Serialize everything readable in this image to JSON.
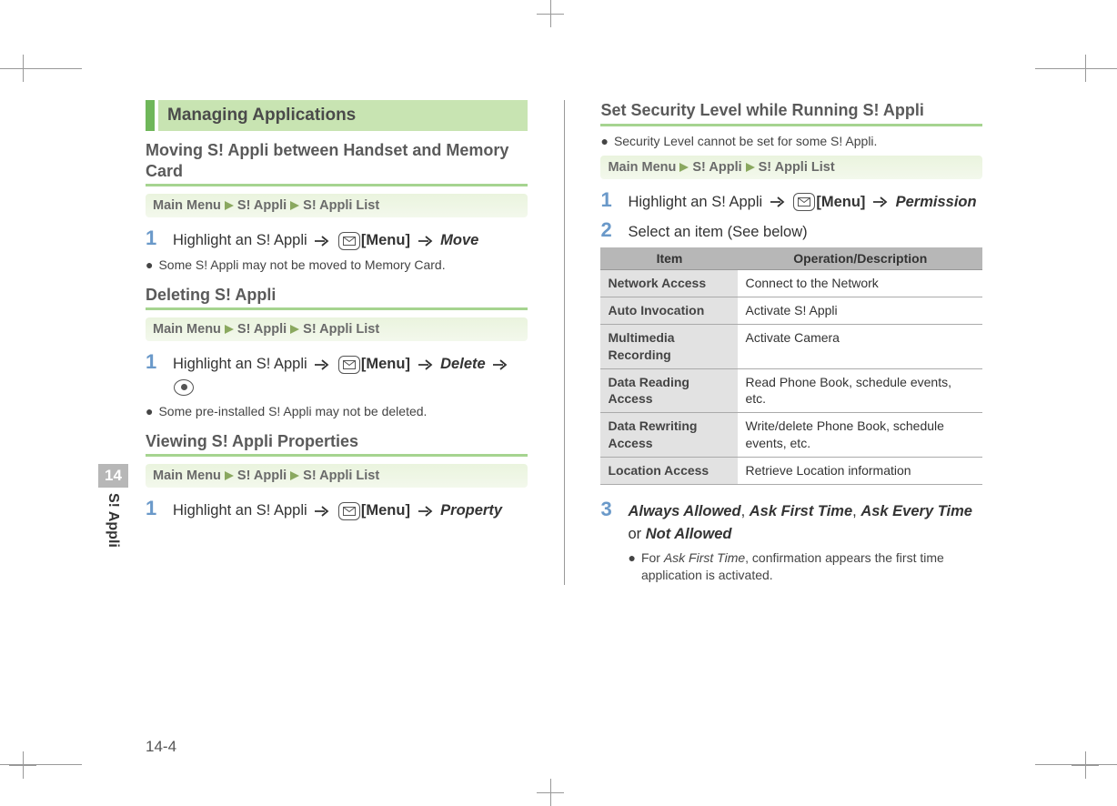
{
  "side_tab": {
    "chapter": "14",
    "label": "S! Appli"
  },
  "page_number": "14-4",
  "left": {
    "section_title": "Managing Applications",
    "moving": {
      "heading": "Moving S! Appli between Handset and Memory Card",
      "breadcrumb": [
        "Main Menu",
        "S! Appli",
        "S! Appli List"
      ],
      "step": {
        "num": "1",
        "prefix": "Highlight an S! Appli",
        "menu": "[Menu]",
        "action": "Move"
      },
      "note": "Some S! Appli may not be moved to Memory Card."
    },
    "deleting": {
      "heading": "Deleting S! Appli",
      "breadcrumb": [
        "Main Menu",
        "S! Appli",
        "S! Appli List"
      ],
      "step": {
        "num": "1",
        "prefix": "Highlight an S! Appli",
        "menu": "[Menu]",
        "action": "Delete"
      },
      "note": "Some pre-installed S! Appli may not be deleted."
    },
    "viewing": {
      "heading": "Viewing S! Appli Properties",
      "breadcrumb": [
        "Main Menu",
        "S! Appli",
        "S! Appli List"
      ],
      "step": {
        "num": "1",
        "prefix": "Highlight an S! Appli",
        "menu": "[Menu]",
        "action": "Property"
      }
    }
  },
  "right": {
    "heading": "Set Security Level while Running S! Appli",
    "note": "Security Level cannot be set for some S! Appli.",
    "breadcrumb": [
      "Main Menu",
      "S! Appli",
      "S! Appli List"
    ],
    "step1": {
      "num": "1",
      "prefix": "Highlight an S! Appli",
      "menu": "[Menu]",
      "action": "Permission"
    },
    "step2": {
      "num": "2",
      "text": "Select an item (See below)"
    },
    "table": {
      "headers": [
        "Item",
        "Operation/Description"
      ],
      "rows": [
        [
          "Network Access",
          "Connect to the Network"
        ],
        [
          "Auto Invocation",
          "Activate S! Appli"
        ],
        [
          "Multimedia Recording",
          "Activate Camera"
        ],
        [
          "Data Reading Access",
          "Read Phone Book, schedule events, etc."
        ],
        [
          "Data Rewriting Access",
          "Write/delete Phone Book, schedule events, etc."
        ],
        [
          "Location Access",
          "Retrieve Location information"
        ]
      ]
    },
    "step3": {
      "num": "3",
      "opt1": "Always Allowed",
      "opt2": "Ask First Time",
      "opt3": "Ask Every Time",
      "or": "or",
      "opt4": "Not Allowed",
      "sub_pre": "For ",
      "sub_bold": "Ask First Time",
      "sub_post": ", confirmation appears the first time application is activated."
    }
  }
}
